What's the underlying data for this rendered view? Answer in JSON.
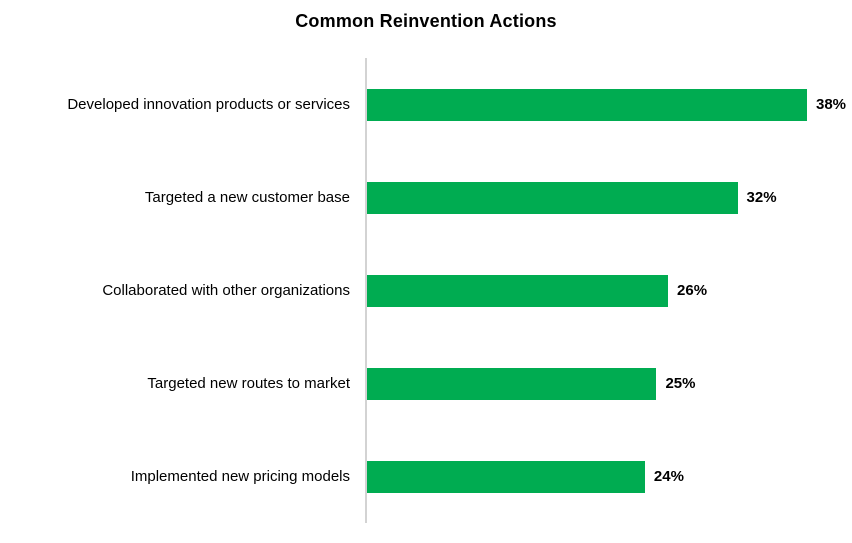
{
  "title": "Common Reinvention Actions",
  "chart_data": {
    "type": "bar",
    "orientation": "horizontal",
    "title": "Common Reinvention Actions",
    "categories": [
      "Developed innovation products or services",
      "Targeted a new customer base",
      "Collaborated with other organizations",
      "Targeted new routes to market",
      "Implemented new pricing models"
    ],
    "values": [
      38,
      32,
      26,
      25,
      24
    ],
    "value_labels": [
      "38%",
      "32%",
      "26%",
      "25%",
      "24%"
    ],
    "xlabel": "",
    "ylabel": "",
    "xlim": [
      0,
      38
    ],
    "grid": false,
    "legend": false,
    "bar_color": "#00ac51",
    "axis_line_color": "#d3d3d3",
    "value_label_style": "bold"
  }
}
